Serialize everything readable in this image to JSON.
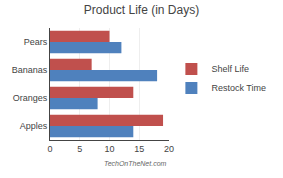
{
  "chart_data": {
    "type": "bar",
    "orientation": "horizontal",
    "title": "Product Life (in Days)",
    "categories": [
      "Apples",
      "Oranges",
      "Bananas",
      "Pears"
    ],
    "series": [
      {
        "name": "Shelf Life",
        "color": "#C0504D",
        "values": [
          19,
          14,
          7,
          10
        ]
      },
      {
        "name": "Restock Time",
        "color": "#4F81BD",
        "values": [
          14,
          8,
          18,
          12
        ]
      }
    ],
    "xlim": [
      0,
      20
    ],
    "xticks": [
      0,
      5,
      10,
      15,
      20
    ],
    "grid": true,
    "legend": "right",
    "annotations": [
      "TechOnTheNet.com"
    ]
  }
}
